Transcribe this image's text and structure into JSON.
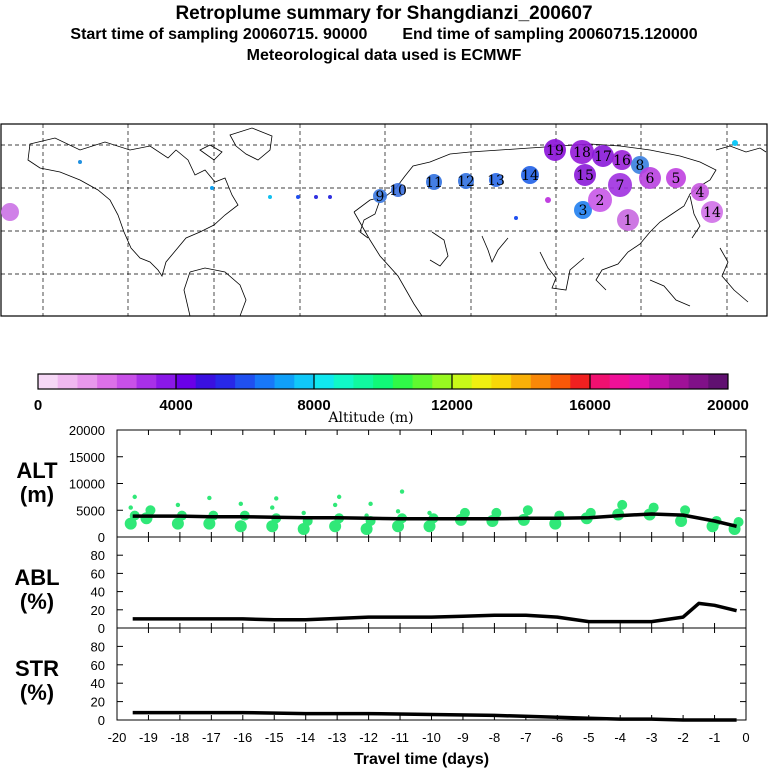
{
  "title": "Retroplume summary for Shangdianzi_200607",
  "start_label": "Start time of sampling 20060715. 90000",
  "end_label": "End time of sampling 20060715.120000",
  "met_label": "Meteorological data used is ECMWF",
  "colorbar": {
    "label": "Altitude (m)",
    "ticks": [
      "0",
      "4000",
      "8000",
      "12000",
      "16000",
      "20000"
    ],
    "colors": [
      "#f6d8f6",
      "#f0b8f0",
      "#e898ec",
      "#dc70e8",
      "#c850e8",
      "#a830e8",
      "#8a18e8",
      "#6a00e8",
      "#3a10e0",
      "#2828e8",
      "#2050f0",
      "#1878f8",
      "#10a0f8",
      "#10c8f8",
      "#10e8f0",
      "#10f8c8",
      "#10f8a0",
      "#10f878",
      "#30f848",
      "#60f830",
      "#98f820",
      "#c8f818",
      "#f0f010",
      "#f8d808",
      "#f8b008",
      "#f88808",
      "#f85808",
      "#f02020",
      "#f01070",
      "#f01098",
      "#e010b0",
      "#c010a8",
      "#a01098",
      "#801088",
      "#601070"
    ]
  },
  "map": {
    "clusters": [
      {
        "label": "19",
        "color": "#8a10d8"
      },
      {
        "label": "18",
        "color": "#9418d8"
      },
      {
        "label": "17",
        "color": "#8818d8"
      },
      {
        "label": "16",
        "color": "#9a20d8"
      },
      {
        "label": "15",
        "color": "#8a18d8"
      },
      {
        "label": "14",
        "color": "#2060e8"
      },
      {
        "label": "13",
        "color": "#2868e8"
      },
      {
        "label": "12",
        "color": "#3070e0"
      },
      {
        "label": "11",
        "color": "#3070e0"
      },
      {
        "label": "10",
        "color": "#3a70e0"
      },
      {
        "label": "9",
        "color": "#3a78e0"
      },
      {
        "label": "8",
        "color": "#3880e0"
      },
      {
        "label": "7",
        "color": "#a030e0"
      },
      {
        "label": "6",
        "color": "#b840e0"
      },
      {
        "label": "5",
        "color": "#c040e0"
      },
      {
        "label": "4",
        "color": "#c858e0"
      },
      {
        "label": "3",
        "color": "#2080f0"
      },
      {
        "label": "2",
        "color": "#c858e8"
      },
      {
        "label": "1",
        "color": "#c868e0"
      },
      {
        "label": "14",
        "color": "#d070e8"
      }
    ]
  },
  "chart_data": [
    {
      "type": "line",
      "panel_label": [
        "ALT",
        "(m)"
      ],
      "xlim": [
        -20,
        0
      ],
      "ylim": [
        0,
        20000
      ],
      "yticks": [
        "20000",
        "15000",
        "10000",
        "5000",
        "0"
      ],
      "series": [
        {
          "name": "mean altitude",
          "x": [
            -19.5,
            -19,
            -18,
            -17,
            -16,
            -15,
            -14,
            -13,
            -12,
            -11,
            -10,
            -9,
            -8,
            -7,
            -6,
            -5,
            -4,
            -3,
            -2,
            -1,
            -0.3
          ],
          "y": [
            3900,
            3900,
            3900,
            3800,
            3800,
            3700,
            3600,
            3600,
            3500,
            3400,
            3400,
            3400,
            3400,
            3500,
            3500,
            3600,
            4000,
            4300,
            4100,
            3000,
            2000
          ]
        }
      ],
      "cluster_altitudes": {
        "x": [
          -19.5,
          -19,
          -18,
          -17,
          -16,
          -15,
          -14,
          -13,
          -12,
          -11,
          -10,
          -9,
          -8,
          -7,
          -6,
          -5,
          -4,
          -3,
          -2,
          -1,
          -0.3
        ],
        "y": [
          [
            2500,
            4000,
            5500,
            7500
          ],
          [
            3500,
            5000
          ],
          [
            2500,
            4000,
            6000
          ],
          [
            2500,
            4000,
            7300
          ],
          [
            2000,
            4000,
            6200
          ],
          [
            2000,
            3500,
            5500,
            7200
          ],
          [
            1500,
            3000,
            4500
          ],
          [
            2000,
            3500,
            6000,
            7500
          ],
          [
            1500,
            3000,
            4000,
            6200
          ],
          [
            2000,
            3500,
            4800,
            8500
          ],
          [
            2000,
            3500,
            4500
          ],
          [
            3200,
            4500
          ],
          [
            3000,
            4500
          ],
          [
            3200,
            5000
          ],
          [
            2500,
            4000
          ],
          [
            3500,
            4500
          ],
          [
            4200,
            6000
          ],
          [
            4200,
            5500
          ],
          [
            3000,
            5000
          ],
          [
            2000,
            3000
          ],
          [
            1500,
            2800
          ]
        ]
      }
    },
    {
      "type": "line",
      "panel_label": [
        "ABL",
        "(%)"
      ],
      "xlim": [
        -20,
        0
      ],
      "ylim": [
        0,
        100
      ],
      "yticks": [
        "80",
        "60",
        "40",
        "20",
        "0"
      ],
      "series": [
        {
          "name": "ABL fraction",
          "x": [
            -19.5,
            -18,
            -16,
            -15,
            -14,
            -12,
            -11,
            -10,
            -9,
            -8,
            -7,
            -6,
            -5,
            -4,
            -3,
            -2,
            -1.5,
            -1,
            -0.3
          ],
          "y": [
            10,
            10,
            10,
            9,
            9,
            12,
            12,
            12,
            13,
            14,
            14,
            12,
            7,
            7,
            7,
            12,
            27,
            25,
            19
          ]
        }
      ]
    },
    {
      "type": "line",
      "panel_label": [
        "STR",
        "(%)"
      ],
      "xlim": [
        -20,
        0
      ],
      "ylim": [
        0,
        100
      ],
      "yticks": [
        "80",
        "60",
        "40",
        "20",
        "0"
      ],
      "xticks": [
        "-20",
        "-19",
        "-18",
        "-17",
        "-16",
        "-15",
        "-14",
        "-13",
        "-12",
        "-11",
        "-10",
        "-9",
        "-8",
        "-7",
        "-6",
        "-5",
        "-4",
        "-3",
        "-2",
        "-1",
        "0"
      ],
      "xlabel": "Travel time (days)",
      "series": [
        {
          "name": "stratospheric fraction",
          "x": [
            -19.5,
            -18,
            -16,
            -14,
            -12,
            -10,
            -8,
            -6,
            -5,
            -4,
            -3,
            -2,
            -1,
            -0.3
          ],
          "y": [
            8,
            8,
            8,
            7,
            7,
            6,
            5,
            3,
            2,
            1,
            1,
            0,
            0,
            0
          ]
        }
      ]
    }
  ]
}
